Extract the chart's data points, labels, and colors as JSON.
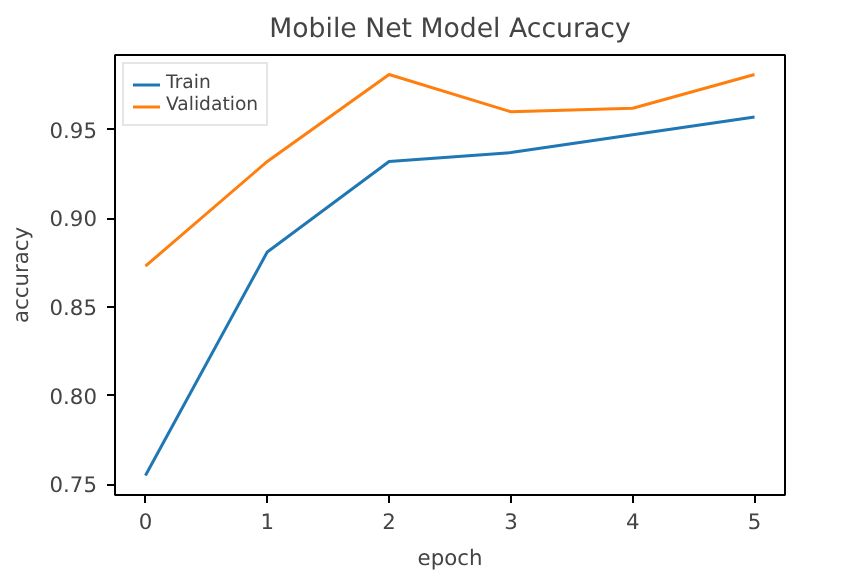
{
  "chart_data": {
    "type": "line",
    "title": "Mobile Net Model Accuracy",
    "xlabel": "epoch",
    "ylabel": "accuracy",
    "x": [
      0,
      1,
      2,
      3,
      4,
      5
    ],
    "series": [
      {
        "name": "Train",
        "color": "#1f77b4",
        "values": [
          0.755,
          0.881,
          0.932,
          0.937,
          0.947,
          0.957
        ]
      },
      {
        "name": "Validation",
        "color": "#ff7f0e",
        "values": [
          0.873,
          0.932,
          0.981,
          0.96,
          0.962,
          0.981
        ]
      }
    ],
    "xlim": [
      -0.25,
      5.25
    ],
    "ylim": [
      0.744,
      0.992
    ],
    "xticks": [
      0,
      1,
      2,
      3,
      4,
      5
    ],
    "yticks": [
      {
        "value": 0.75,
        "label": "0.75"
      },
      {
        "value": 0.8,
        "label": "0.80"
      },
      {
        "value": 0.85,
        "label": "0.85"
      },
      {
        "value": 0.9,
        "label": "0.90"
      },
      {
        "value": 0.95,
        "label": "0.95"
      }
    ],
    "legend": "top left",
    "grid": false
  }
}
